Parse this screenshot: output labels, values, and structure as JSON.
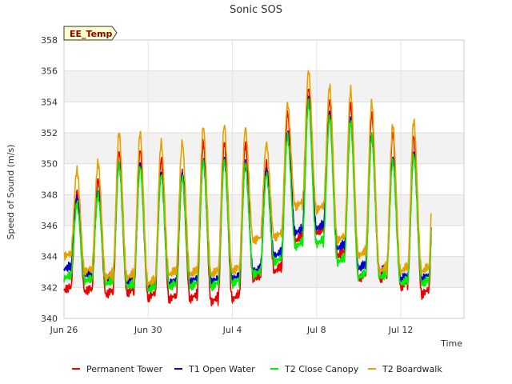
{
  "chart_data": {
    "type": "line",
    "title": "Sonic SOS",
    "xlabel": "Time",
    "ylabel": "Speed of Sound (m/s)",
    "badge": "EE_Temp",
    "x_range": [
      "Jun 26",
      "Jul 15"
    ],
    "ylim": [
      340,
      358
    ],
    "yticks": [
      340,
      342,
      344,
      346,
      348,
      350,
      352,
      354,
      356,
      358
    ],
    "xticks": [
      {
        "label": "Jun 26",
        "day": 0
      },
      {
        "label": "Jun 30",
        "day": 4
      },
      {
        "label": "Jul 4",
        "day": 8
      },
      {
        "label": "Jul 8",
        "day": 12
      },
      {
        "label": "Jul 12",
        "day": 16
      }
    ],
    "grid": true,
    "background_bands": true,
    "legend_position": "bottom",
    "series": [
      {
        "name": "Permanent Tower",
        "color": "#ee0000",
        "daily_min": [
          341.8,
          341.7,
          341.5,
          341.6,
          341.3,
          341.2,
          341.2,
          341.0,
          341.2,
          342.5,
          343.0,
          345.0,
          345.5,
          344.0,
          342.5,
          342.5,
          342.0,
          341.5,
          342.5
        ],
        "daily_max": [
          348.2,
          349.0,
          350.8,
          350.9,
          350.3,
          349.4,
          351.4,
          351.4,
          351.3,
          350.0,
          353.3,
          354.9,
          354.1,
          353.9,
          353.3,
          352.0,
          351.8
        ]
      },
      {
        "name": "T1 Open Water",
        "color": "#0000cc",
        "daily_min": [
          343.2,
          342.8,
          342.5,
          342.3,
          342.0,
          342.2,
          342.3,
          342.3,
          342.5,
          343.0,
          344.0,
          345.5,
          345.8,
          344.5,
          343.2,
          343.0,
          342.5,
          342.5,
          343.0
        ],
        "daily_max": [
          347.8,
          348.2,
          350.0,
          350.0,
          349.4,
          349.4,
          350.3,
          350.3,
          350.0,
          349.5,
          352.0,
          354.2,
          353.2,
          352.9,
          351.9,
          350.4,
          350.7
        ]
      },
      {
        "name": "T2 Close Canopy",
        "color": "#00ee00",
        "daily_min": [
          342.6,
          342.4,
          342.2,
          342.0,
          341.8,
          342.0,
          342.0,
          342.0,
          342.2,
          342.8,
          343.6,
          344.6,
          344.8,
          343.6,
          342.6,
          342.6,
          342.2,
          342.2,
          344.2
        ],
        "daily_max": [
          347.4,
          348.0,
          350.0,
          349.8,
          349.3,
          349.2,
          350.2,
          350.2,
          350.0,
          349.3,
          351.8,
          354.0,
          353.0,
          352.7,
          351.8,
          350.2,
          350.6
        ]
      },
      {
        "name": "T2 Boardwalk",
        "color": "#e8a000",
        "daily_min": [
          344.0,
          343.0,
          342.6,
          342.6,
          342.2,
          342.8,
          342.8,
          342.8,
          343.0,
          345.0,
          345.2,
          347.2,
          347.0,
          345.0,
          344.0,
          343.0,
          343.0,
          343.0,
          346.0
        ],
        "daily_max": [
          349.6,
          350.1,
          352.0,
          352.0,
          351.4,
          351.4,
          352.4,
          352.5,
          352.3,
          351.3,
          353.9,
          356.0,
          355.0,
          354.8,
          354.0,
          352.5,
          352.8
        ]
      }
    ]
  }
}
